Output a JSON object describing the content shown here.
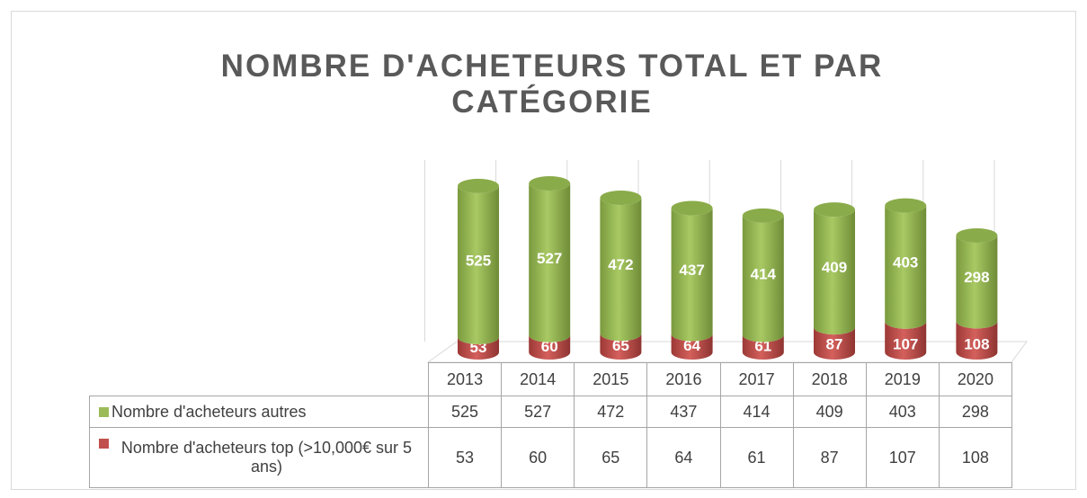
{
  "chart_data": {
    "type": "bar3d_stacked_table",
    "title": "NOMBRE D'ACHETEURS TOTAL ET PAR CATÉGORIE",
    "categories": [
      "2013",
      "2014",
      "2015",
      "2016",
      "2017",
      "2018",
      "2019",
      "2020"
    ],
    "series": [
      {
        "name": "Nombre d'acheteurs top (>10,000€ sur 5 ans)",
        "color": "#c0504d",
        "values": [
          53,
          60,
          65,
          64,
          61,
          87,
          107,
          108
        ]
      },
      {
        "name": "Nombre d'acheteurs autres",
        "color": "#9bbb59",
        "values": [
          525,
          527,
          472,
          437,
          414,
          409,
          403,
          298
        ]
      }
    ]
  }
}
